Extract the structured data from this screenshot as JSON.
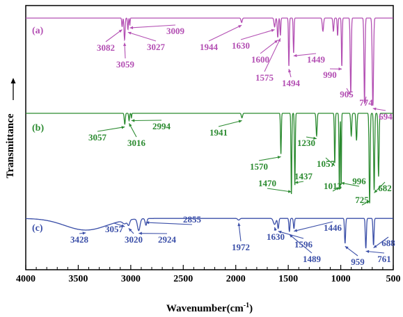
{
  "chart_data": {
    "type": "line",
    "xlabel": "Wavenumber(cm",
    "xlabel_sup": "-1",
    "xlabel_close": ")",
    "ylabel": "Transmittance",
    "xlim": [
      4000,
      500
    ],
    "x_ticks": [
      "4000",
      "3500",
      "3000",
      "2500",
      "2000",
      "1500",
      "1000",
      "500"
    ],
    "x_reversed": true,
    "y_ticks_shown": false,
    "grid": false,
    "legend": "none",
    "series": [
      {
        "name": "(a)",
        "color": "#b34fb3",
        "baseline": 0.02,
        "bands": [
          [
            3082,
            4,
            0.1
          ],
          [
            3059,
            5,
            0.25
          ],
          [
            3027,
            4,
            0.13
          ],
          [
            3009,
            3,
            0.08
          ],
          [
            1944,
            6,
            0.05
          ],
          [
            1630,
            6,
            0.1
          ],
          [
            1600,
            5,
            0.22
          ],
          [
            1575,
            4,
            0.2
          ],
          [
            1494,
            4,
            0.55
          ],
          [
            1449,
            4,
            0.4
          ],
          [
            1170,
            6,
            0.15
          ],
          [
            1070,
            5,
            0.15
          ],
          [
            1030,
            4,
            0.2
          ],
          [
            990,
            4,
            0.55
          ],
          [
            905,
            5,
            0.85
          ],
          [
            774,
            5,
            0.95
          ],
          [
            694,
            6,
            1.0
          ]
        ],
        "annotations": [
          {
            "label": "3082",
            "x": 3082
          },
          {
            "label": "3059",
            "x": 3059
          },
          {
            "label": "3027",
            "x": 3027
          },
          {
            "label": "3009",
            "x": 3009
          },
          {
            "label": "1944",
            "x": 1944
          },
          {
            "label": "1630",
            "x": 1630
          },
          {
            "label": "1600",
            "x": 1600
          },
          {
            "label": "1575",
            "x": 1575
          },
          {
            "label": "1494",
            "x": 1494
          },
          {
            "label": "1449",
            "x": 1449
          },
          {
            "label": "990",
            "x": 990
          },
          {
            "label": "905",
            "x": 905
          },
          {
            "label": "774",
            "x": 774
          },
          {
            "label": "694",
            "x": 694
          }
        ]
      },
      {
        "name": "(b)",
        "color": "#2a8a2f",
        "baseline": 0.03,
        "bands": [
          [
            3057,
            5,
            0.12
          ],
          [
            3016,
            4,
            0.08
          ],
          [
            2994,
            3,
            0.05
          ],
          [
            1941,
            6,
            0.05
          ],
          [
            1570,
            4,
            0.45
          ],
          [
            1470,
            4,
            0.9
          ],
          [
            1437,
            4,
            0.8
          ],
          [
            1230,
            5,
            0.25
          ],
          [
            1057,
            4,
            0.55
          ],
          [
            1013,
            4,
            0.85
          ],
          [
            996,
            3,
            0.8
          ],
          [
            900,
            5,
            0.25
          ],
          [
            850,
            5,
            0.3
          ],
          [
            725,
            5,
            1.0
          ],
          [
            682,
            5,
            0.85
          ],
          [
            640,
            5,
            0.7
          ]
        ],
        "annotations": [
          {
            "label": "3057",
            "x": 3057
          },
          {
            "label": "3016",
            "x": 3016
          },
          {
            "label": "2994",
            "x": 2994
          },
          {
            "label": "1941",
            "x": 1941
          },
          {
            "label": "1570",
            "x": 1570
          },
          {
            "label": "1470",
            "x": 1470
          },
          {
            "label": "1437",
            "x": 1437
          },
          {
            "label": "1230",
            "x": 1230
          },
          {
            "label": "1057",
            "x": 1057
          },
          {
            "label": "1013",
            "x": 1013
          },
          {
            "label": "996",
            "x": 996
          },
          {
            "label": "725",
            "x": 725
          },
          {
            "label": "682",
            "x": 682
          }
        ]
      },
      {
        "name": "(c)",
        "color": "#3b4fa8",
        "baseline": 0.15,
        "bands": [
          [
            3428,
            200,
            0.35
          ],
          [
            3057,
            20,
            0.1
          ],
          [
            3020,
            10,
            0.15
          ],
          [
            2924,
            12,
            0.35
          ],
          [
            2855,
            8,
            0.2
          ],
          [
            1972,
            10,
            0.05
          ],
          [
            1630,
            12,
            0.18
          ],
          [
            1596,
            6,
            0.3
          ],
          [
            1489,
            5,
            0.4
          ],
          [
            1446,
            5,
            0.3
          ],
          [
            959,
            5,
            0.75
          ],
          [
            761,
            5,
            0.9
          ],
          [
            688,
            5,
            0.8
          ]
        ],
        "annotations": [
          {
            "label": "3428",
            "x": 3428
          },
          {
            "label": "3057",
            "x": 3057
          },
          {
            "label": "3020",
            "x": 3020
          },
          {
            "label": "2924",
            "x": 2924
          },
          {
            "label": "2855",
            "x": 2855
          },
          {
            "label": "1972",
            "x": 1972
          },
          {
            "label": "1630",
            "x": 1630
          },
          {
            "label": "1596",
            "x": 1596
          },
          {
            "label": "1489",
            "x": 1489
          },
          {
            "label": "1446",
            "x": 1446
          },
          {
            "label": "959",
            "x": 959
          },
          {
            "label": "761",
            "x": 761
          },
          {
            "label": "688",
            "x": 688
          }
        ]
      }
    ]
  }
}
